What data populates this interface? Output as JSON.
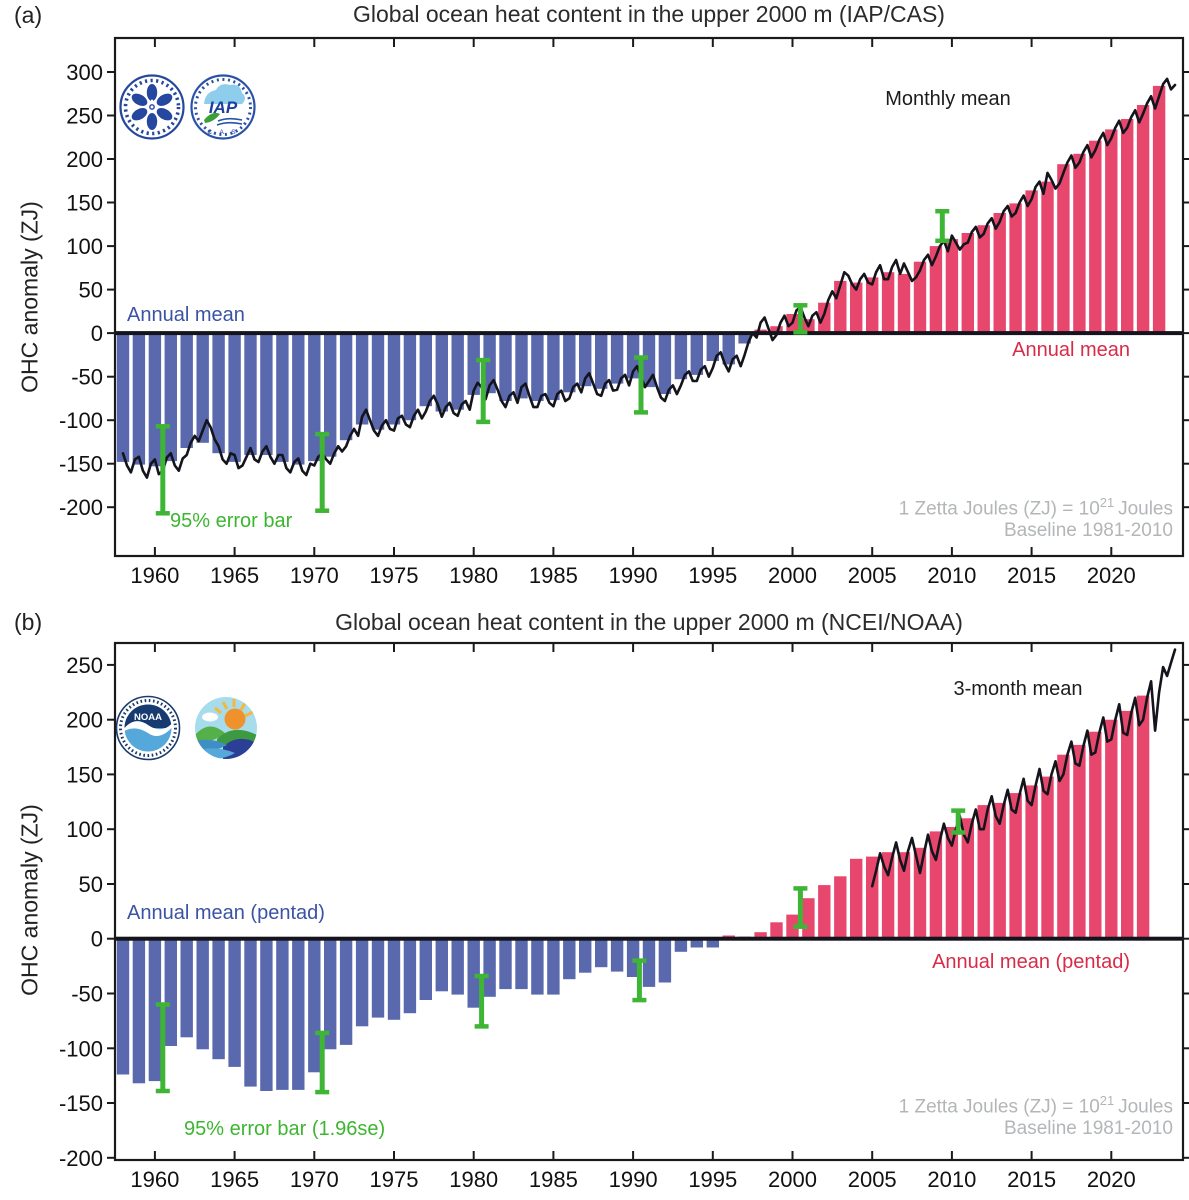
{
  "page": {
    "background": "#ffffff",
    "units": "ZJ"
  },
  "colors": {
    "bar_negative": "#5a69ae",
    "bar_positive": "#e8476d",
    "line": "#14141c",
    "error_bar": "#3fb535",
    "label_blue": "#3a53a4",
    "label_red": "#d92b47",
    "label_green": "#3cb631",
    "label_gray": "#b3b6b8",
    "axis": "#1a1a1a"
  },
  "logos": {
    "cas": {
      "name": "Chinese Academy of Sciences emblem"
    },
    "iap": {
      "text": "IAP",
      "sub_text": "C A S"
    },
    "noaa": {
      "text": "NOAA"
    },
    "ncei": {
      "name": "NOAA climate landscape emblem"
    }
  },
  "chart_data": [
    {
      "id": "a",
      "type": "bar+line",
      "panel_label": "(a)",
      "title": "Global ocean heat content in the upper 2000 m (IAP/CAS)",
      "ylabel": "OHC anomaly (ZJ)",
      "xlim": [
        1957.5,
        2024.5
      ],
      "ylim": [
        -256,
        339
      ],
      "xticks": [
        1960,
        1965,
        1970,
        1975,
        1980,
        1985,
        1990,
        1995,
        2000,
        2005,
        2010,
        2015,
        2020
      ],
      "yticks": [
        -200,
        -150,
        -100,
        -50,
        0,
        50,
        100,
        150,
        200,
        250,
        300
      ],
      "grid": false,
      "legend_labels": {
        "line_series": "Monthly mean",
        "bar_series_negative": "Annual mean",
        "bar_series_positive": "Annual mean",
        "error_bar": "95% error bar",
        "note_line1_pre": "1 Zetta Joules (ZJ) = 10",
        "note_line1_sup": "21",
        "note_line1_post": "Joules",
        "note_line2": "Baseline 1981-2010"
      },
      "bars": {
        "start_year": 1958,
        "values": [
          -148,
          -151,
          -153,
          -147,
          -132,
          -126,
          -138,
          -148,
          -140,
          -140,
          -148,
          -151,
          -147,
          -142,
          -123,
          -105,
          -111,
          -105,
          -100,
          -84,
          -90,
          -88,
          -71,
          -69,
          -78,
          -75,
          -78,
          -77,
          -68,
          -61,
          -64,
          -58,
          -52,
          -62,
          -70,
          -53,
          -48,
          -32,
          -36,
          -12,
          4,
          8,
          22,
          16,
          35,
          60,
          58,
          64,
          70,
          68,
          82,
          100,
          108,
          115,
          124,
          138,
          149,
          164,
          174,
          194,
          206,
          221,
          234,
          246,
          262,
          284
        ]
      },
      "line": {
        "start": 1958.0,
        "step": 0.25,
        "values": [
          -138,
          -152,
          -160,
          -145,
          -142,
          -158,
          -166,
          -150,
          -145,
          -162,
          -158,
          -143,
          -138,
          -152,
          -158,
          -144,
          -140,
          -126,
          -118,
          -124,
          -112,
          -100,
          -108,
          -122,
          -130,
          -145,
          -150,
          -138,
          -140,
          -155,
          -152,
          -142,
          -132,
          -145,
          -148,
          -136,
          -130,
          -142,
          -150,
          -140,
          -140,
          -155,
          -160,
          -148,
          -144,
          -158,
          -163,
          -150,
          -152,
          -142,
          -138,
          -145,
          -150,
          -138,
          -130,
          -136,
          -130,
          -118,
          -110,
          -118,
          -96,
          -88,
          -100,
          -112,
          -118,
          -106,
          -100,
          -110,
          -112,
          -98,
          -95,
          -105,
          -108,
          -95,
          -88,
          -98,
          -90,
          -78,
          -72,
          -82,
          -96,
          -85,
          -80,
          -92,
          -95,
          -82,
          -78,
          -88,
          -66,
          -57,
          -62,
          -76,
          -60,
          -54,
          -65,
          -78,
          -85,
          -72,
          -68,
          -80,
          -62,
          -58,
          -72,
          -85,
          -85,
          -72,
          -70,
          -80,
          -84,
          -70,
          -66,
          -78,
          -75,
          -62,
          -58,
          -68,
          -52,
          -46,
          -58,
          -70,
          -72,
          -58,
          -54,
          -66,
          -65,
          -52,
          -48,
          -60,
          -44,
          -38,
          -50,
          -62,
          -55,
          -48,
          -62,
          -74,
          -78,
          -65,
          -60,
          -70,
          -60,
          -48,
          -44,
          -55,
          -55,
          -42,
          -38,
          -50,
          -40,
          -26,
          -22,
          -35,
          -44,
          -30,
          -26,
          -38,
          -25,
          -10,
          0,
          -5,
          12,
          18,
          5,
          -8,
          -2,
          12,
          20,
          8,
          12,
          26,
          30,
          18,
          8,
          20,
          24,
          12,
          22,
          38,
          48,
          40,
          55,
          70,
          66,
          56,
          50,
          62,
          68,
          58,
          56,
          70,
          78,
          62,
          62,
          76,
          84,
          68,
          80,
          70,
          60,
          64,
          72,
          84,
          90,
          78,
          88,
          100,
          106,
          94,
          112,
          104,
          96,
          102,
          104,
          116,
          122,
          110,
          114,
          126,
          132,
          120,
          128,
          140,
          146,
          134,
          138,
          150,
          158,
          146,
          154,
          168,
          174,
          160,
          184,
          176,
          166,
          172,
          184,
          196,
          204,
          190,
          196,
          208,
          216,
          202,
          210,
          222,
          230,
          216,
          224,
          236,
          244,
          230,
          236,
          248,
          256,
          242,
          252,
          264,
          272,
          258,
          272,
          286,
          292,
          280,
          285
        ]
      },
      "error_bars": [
        {
          "x": 1960.5,
          "low": -207,
          "high": -107
        },
        {
          "x": 1970.5,
          "low": -204,
          "high": -116
        },
        {
          "x": 1980.6,
          "low": -102,
          "high": -31
        },
        {
          "x": 1990.5,
          "low": -91,
          "high": -28
        },
        {
          "x": 2000.5,
          "low": 1,
          "high": 32
        },
        {
          "x": 2009.4,
          "low": 106,
          "high": 140
        }
      ]
    },
    {
      "id": "b",
      "type": "bar+line",
      "panel_label": "(b)",
      "title": "Global ocean heat content in the upper 2000 m (NCEI/NOAA)",
      "ylabel": "OHC anomaly (ZJ)",
      "xlim": [
        1957.5,
        2024.5
      ],
      "ylim": [
        -202,
        270
      ],
      "xticks": [
        1960,
        1965,
        1970,
        1975,
        1980,
        1985,
        1990,
        1995,
        2000,
        2005,
        2010,
        2015,
        2020
      ],
      "yticks": [
        -200,
        -150,
        -100,
        -50,
        0,
        50,
        100,
        150,
        200,
        250
      ],
      "grid": false,
      "legend_labels": {
        "line_series": "3-month mean",
        "bar_series_negative": "Annual mean (pentad)",
        "bar_series_positive": "Annual mean (pentad)",
        "error_bar": "95% error bar (1.96se)",
        "note_line1_pre": "1 Zetta Joules (ZJ) = 10",
        "note_line1_sup": "21",
        "note_line1_post": "Joules",
        "note_line2": "Baseline 1981-2010"
      },
      "bars": {
        "start_year": 1958,
        "values": [
          -124,
          -132,
          -130,
          -98,
          -90,
          -101,
          -110,
          -117,
          -135,
          -139,
          -138,
          -138,
          -122,
          -101,
          -97,
          -80,
          -72,
          -74,
          -68,
          -56,
          -48,
          -51,
          -63,
          -53,
          -46,
          -46,
          -51,
          -51,
          -37,
          -31,
          -26,
          -30,
          -35,
          -44,
          -40,
          -12,
          -8,
          -8,
          3,
          2,
          6,
          15,
          22,
          37,
          49,
          57,
          73,
          75,
          79,
          79,
          83,
          98,
          102,
          110,
          122,
          124,
          133,
          140,
          148,
          168,
          177,
          189,
          200,
          208,
          222
        ]
      },
      "line": {
        "start": 2005.0,
        "step": 0.25,
        "values": [
          48,
          62,
          78,
          66,
          58,
          74,
          88,
          72,
          62,
          80,
          92,
          76,
          60,
          78,
          95,
          80,
          72,
          90,
          105,
          92,
          85,
          100,
          112,
          95,
          88,
          105,
          118,
          100,
          100,
          118,
          130,
          112,
          105,
          122,
          136,
          118,
          115,
          132,
          146,
          126,
          122,
          140,
          155,
          135,
          132,
          150,
          162,
          144,
          150,
          168,
          180,
          160,
          158,
          176,
          190,
          168,
          170,
          188,
          202,
          180,
          182,
          200,
          214,
          188,
          186,
          206,
          220,
          195,
          200,
          220,
          235,
          190,
          225,
          248,
          240,
          252,
          264
        ]
      },
      "error_bars": [
        {
          "x": 1960.5,
          "low": -139,
          "high": -60
        },
        {
          "x": 1970.5,
          "low": -140,
          "high": -86
        },
        {
          "x": 1980.5,
          "low": -80,
          "high": -34
        },
        {
          "x": 1990.4,
          "low": -56,
          "high": -20
        },
        {
          "x": 2000.5,
          "low": 11,
          "high": 46
        },
        {
          "x": 2010.4,
          "low": 97,
          "high": 117
        }
      ]
    }
  ]
}
